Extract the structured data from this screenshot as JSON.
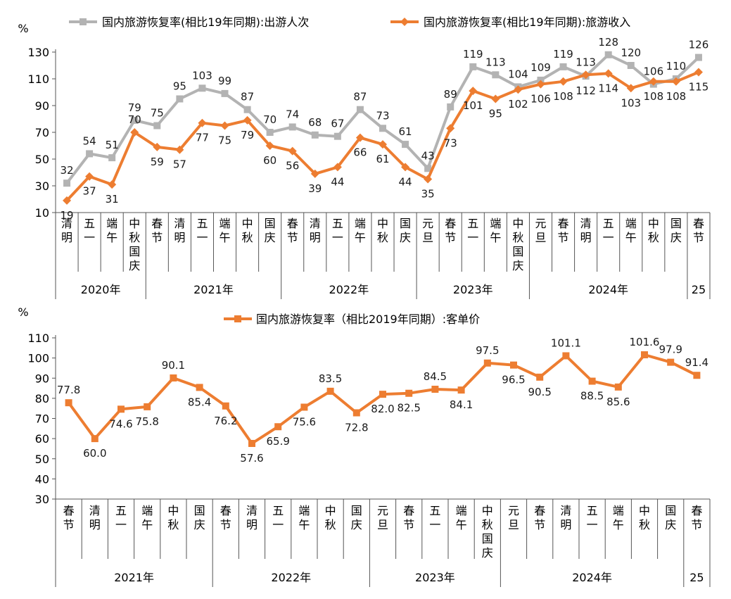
{
  "chart_data": [
    {
      "type": "line",
      "unit_label": "%",
      "ylim": [
        10,
        130
      ],
      "yticks": [
        10,
        30,
        50,
        70,
        90,
        110,
        130
      ],
      "categories": [
        "清明",
        "五一",
        "端午",
        "中秋国庆",
        "春节",
        "清明",
        "五一",
        "端午",
        "中秋",
        "国庆",
        "春节",
        "清明",
        "五一",
        "端午",
        "中秋",
        "国庆",
        "元旦",
        "春节",
        "五一",
        "端午",
        "中秋国庆",
        "元旦",
        "春节",
        "清明",
        "五一",
        "端午",
        "中秋",
        "国庆",
        "春节"
      ],
      "year_groups": [
        {
          "label": "2020年",
          "count": 4
        },
        {
          "label": "2021年",
          "count": 6
        },
        {
          "label": "2022年",
          "count": 6
        },
        {
          "label": "2023年",
          "count": 5
        },
        {
          "label": "2024年",
          "count": 7
        },
        {
          "label": "25",
          "count": 1
        }
      ],
      "series": [
        {
          "name": "国内旅游恢复率(相比19年同期):出游人次",
          "color": "#b3b3b3",
          "values": [
            32,
            54,
            51,
            79,
            75,
            95,
            103,
            99,
            87,
            70,
            74,
            68,
            67,
            87,
            73,
            61,
            43,
            89,
            119,
            113,
            104,
            109,
            119,
            112,
            128,
            120,
            106,
            110,
            126
          ]
        },
        {
          "name": "国内旅游恢复率(相比19年同期):旅游收入",
          "color": "#ed7d31",
          "values": [
            19,
            37,
            31,
            70,
            59,
            57,
            77,
            75,
            79,
            60,
            56,
            39,
            44,
            66,
            61,
            44,
            35,
            73,
            101,
            95,
            102,
            106,
            108,
            113,
            114,
            103,
            108,
            108,
            115
          ]
        }
      ],
      "grid": false,
      "legend": "top"
    },
    {
      "type": "line",
      "unit_label": "%",
      "ylim": [
        30,
        110
      ],
      "yticks": [
        30,
        40,
        50,
        60,
        70,
        80,
        90,
        100,
        110
      ],
      "categories": [
        "春节",
        "清明",
        "五一",
        "端午",
        "中秋",
        "国庆",
        "春节",
        "清明",
        "五一",
        "端午",
        "中秋",
        "国庆",
        "元旦",
        "春节",
        "五一",
        "端午",
        "中秋国庆",
        "元旦",
        "春节",
        "清明",
        "五一",
        "端午",
        "中秋",
        "国庆",
        "春节"
      ],
      "year_groups": [
        {
          "label": "2021年",
          "count": 6
        },
        {
          "label": "2022年",
          "count": 6
        },
        {
          "label": "2023年",
          "count": 5
        },
        {
          "label": "2024年",
          "count": 7
        },
        {
          "label": "25",
          "count": 1
        }
      ],
      "series": [
        {
          "name": "国内旅游恢复率（相比2019年同期）:客单价",
          "color": "#ed7d31",
          "values": [
            77.8,
            60.0,
            74.6,
            75.8,
            90.1,
            85.4,
            76.2,
            57.6,
            65.9,
            75.6,
            83.5,
            72.8,
            82.0,
            82.5,
            84.5,
            84.1,
            97.5,
            96.5,
            90.5,
            101.1,
            88.5,
            85.6,
            101.6,
            97.9,
            91.4
          ]
        }
      ],
      "grid": false,
      "legend": "top"
    }
  ]
}
